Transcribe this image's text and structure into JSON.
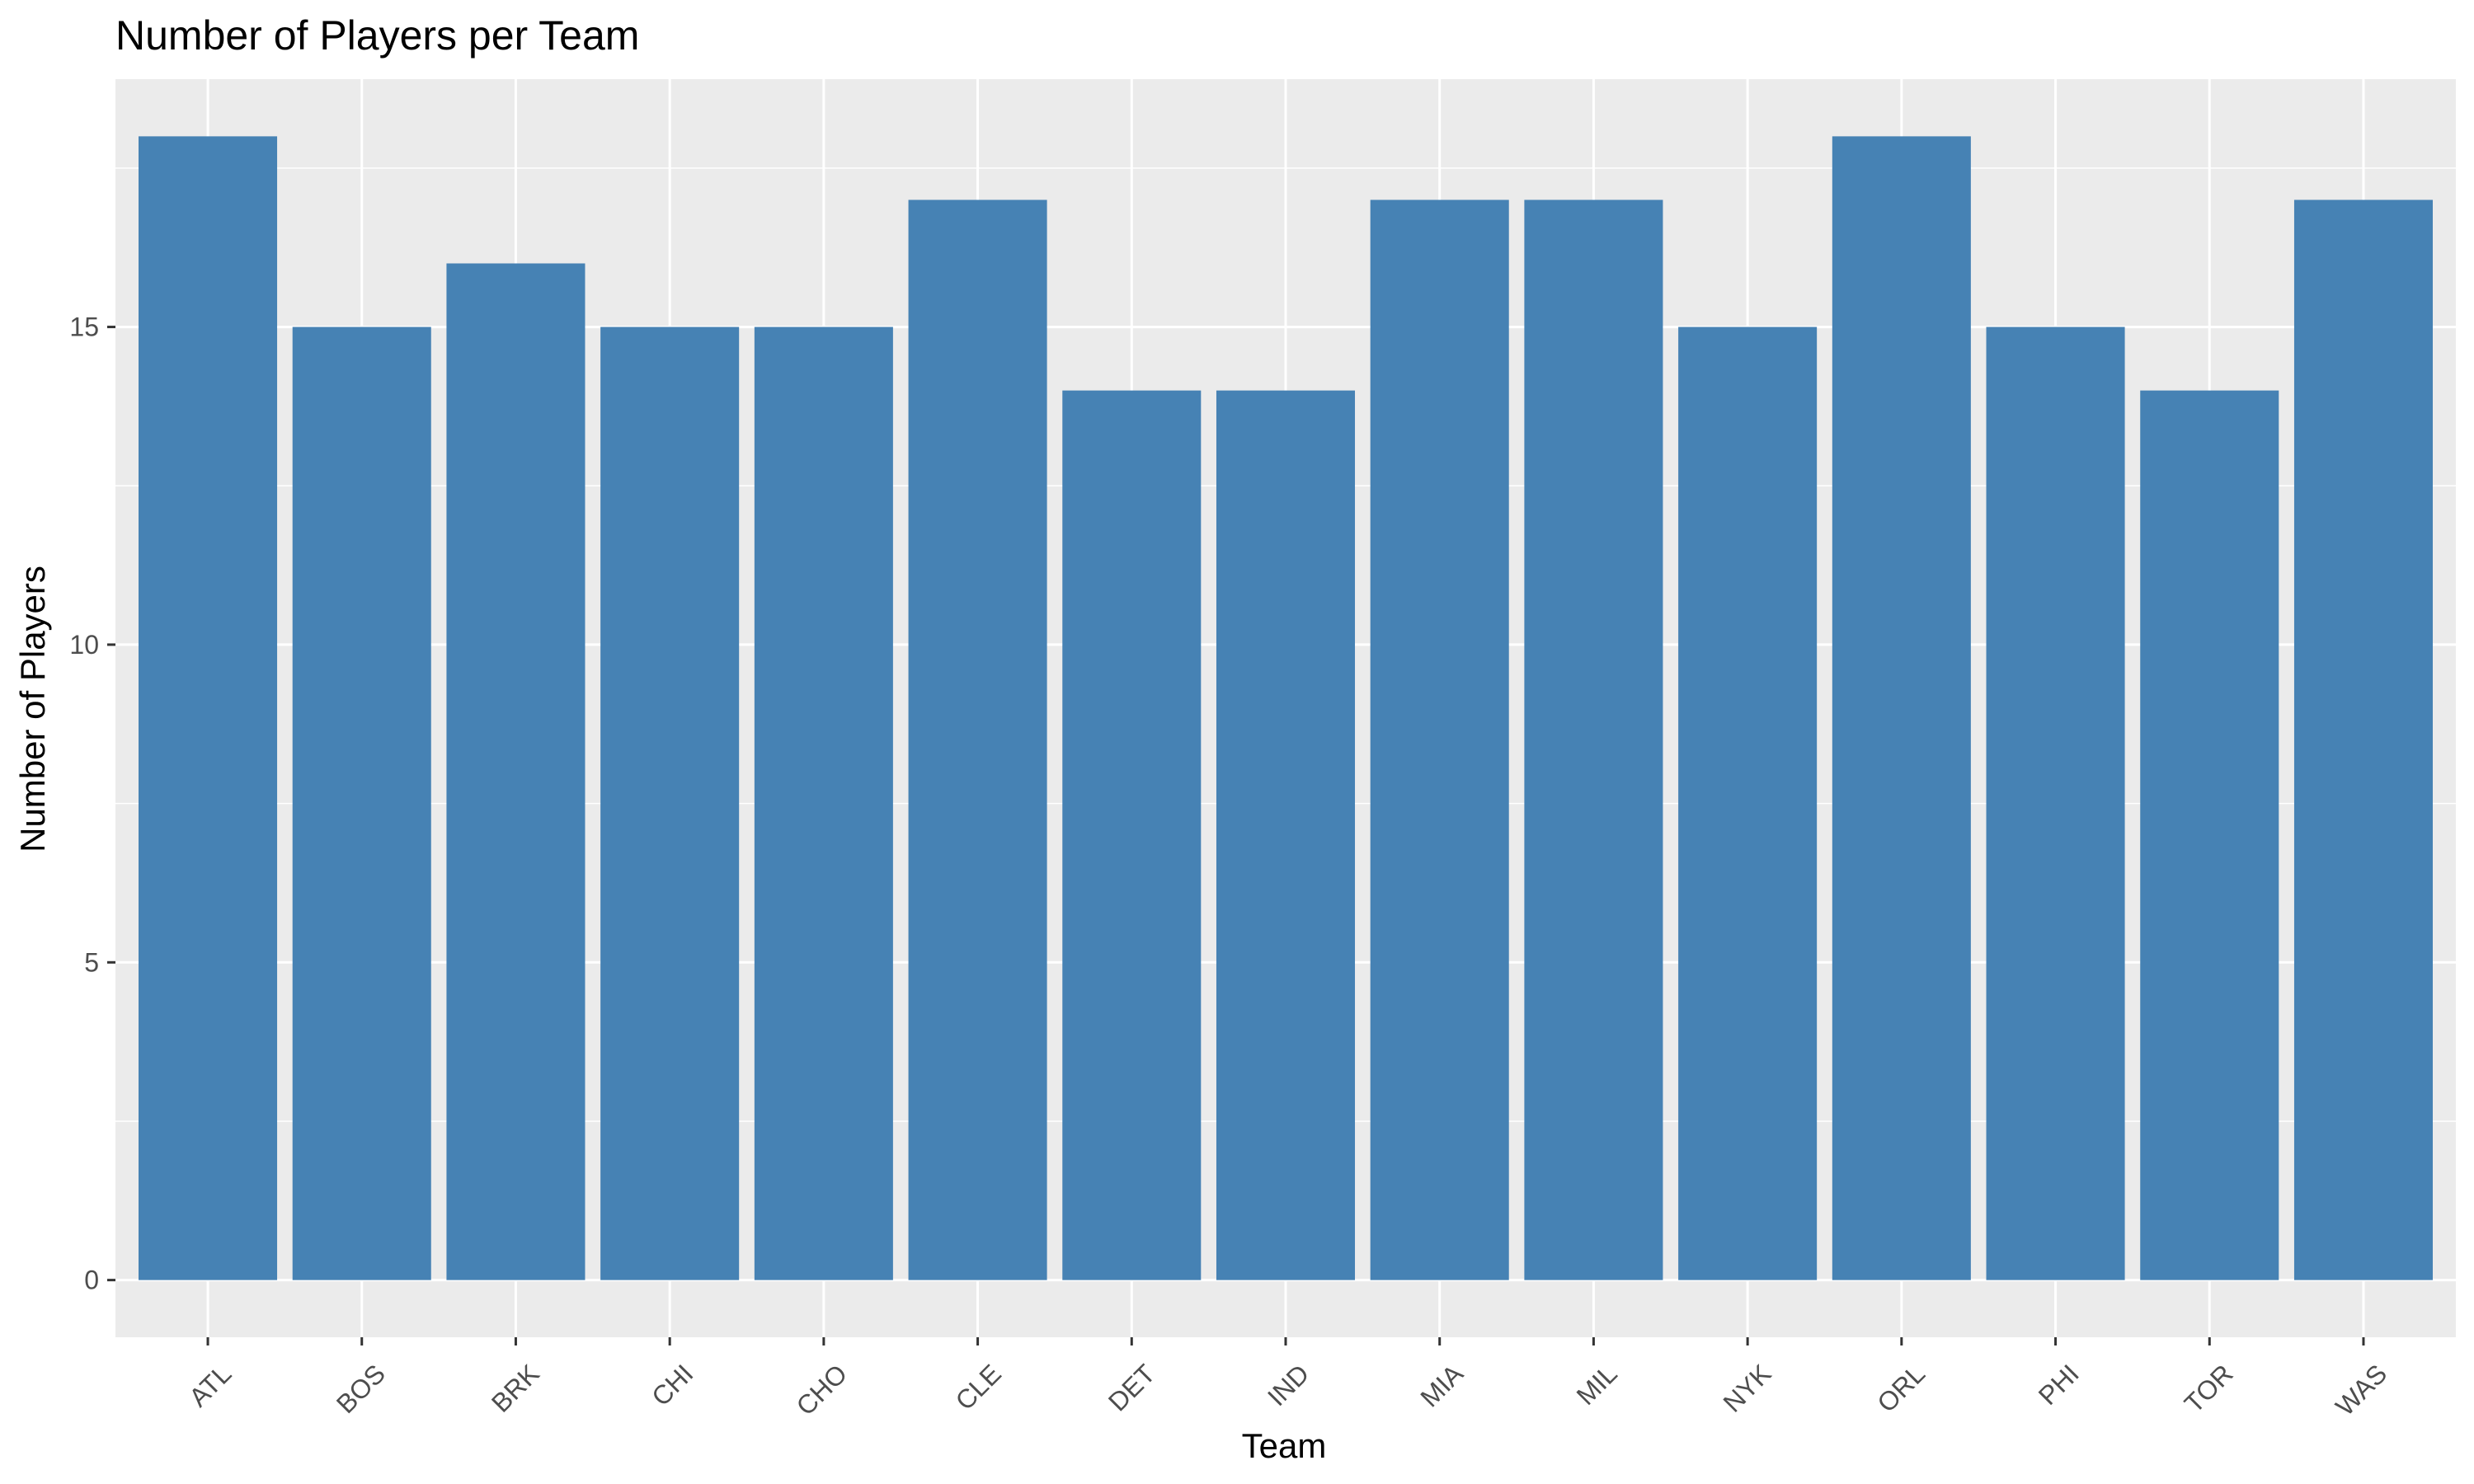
{
  "chart_data": {
    "type": "bar",
    "title": "Number of Players per Team",
    "xlabel": "Team",
    "ylabel": "Number of Players",
    "categories": [
      "ATL",
      "BOS",
      "BRK",
      "CHI",
      "CHO",
      "CLE",
      "DET",
      "IND",
      "MIA",
      "MIL",
      "NYK",
      "ORL",
      "PHI",
      "TOR",
      "WAS"
    ],
    "values": [
      18,
      15,
      16,
      15,
      15,
      17,
      14,
      14,
      17,
      17,
      15,
      18,
      15,
      14,
      17
    ],
    "ylim": [
      -0.9,
      18.9
    ],
    "yticks": [
      0,
      5,
      10,
      15
    ],
    "grid": true,
    "legend": "none",
    "bar_color": "#4682B4",
    "panel_color": "#EBEBEB",
    "grid_color": "#FFFFFF"
  }
}
